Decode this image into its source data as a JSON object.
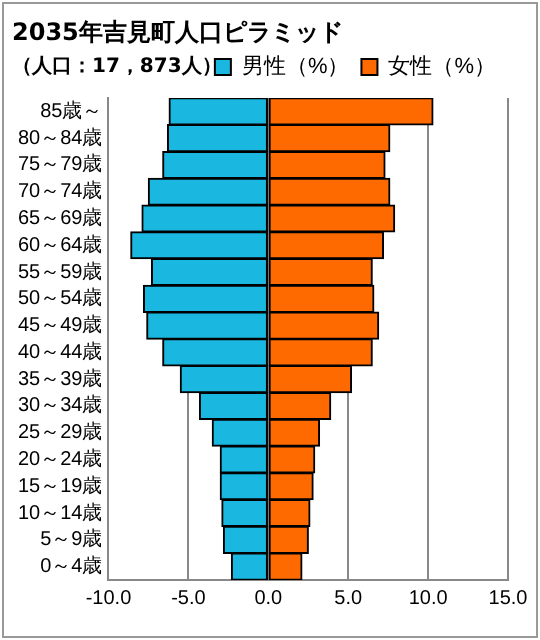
{
  "chart_data": {
    "type": "bar",
    "orientation": "horizontal",
    "stacked": true,
    "title": "2035年吉見町人口ピラミッド",
    "subtitle": "（人口：17，873人）",
    "categories": [
      "85歳～",
      "80～84歳",
      "75～79歳",
      "70～74歳",
      "65～69歳",
      "60～64歳",
      "55～59歳",
      "50～54歳",
      "45～49歳",
      "40～44歳",
      "35～39歳",
      "30～34歳",
      "25～29歳",
      "20～24歳",
      "15～19歳",
      "10～14歳",
      "5～9歳",
      "0～4歳"
    ],
    "series": [
      {
        "name": "男性（%）",
        "color": "#1ab8e0",
        "values": [
          -6.2,
          -6.3,
          -6.6,
          -7.5,
          -7.9,
          -8.6,
          -7.3,
          -7.8,
          -7.6,
          -6.6,
          -5.5,
          -4.3,
          -3.5,
          -3.0,
          -3.0,
          -2.9,
          -2.8,
          -2.3
        ]
      },
      {
        "name": "女性（%）",
        "color": "#ff6a00",
        "values": [
          10.3,
          7.6,
          7.3,
          7.6,
          7.9,
          7.2,
          6.5,
          6.6,
          6.9,
          6.5,
          5.2,
          3.9,
          3.2,
          2.9,
          2.8,
          2.6,
          2.5,
          2.1
        ]
      }
    ],
    "xlim": [
      -10,
      15
    ],
    "xticks": [
      {
        "value": -10,
        "label": "-10.0"
      },
      {
        "value": -5,
        "label": "-5.0"
      },
      {
        "value": 0,
        "label": "0.0"
      },
      {
        "value": 5,
        "label": "5.0"
      },
      {
        "value": 10,
        "label": "10.0"
      },
      {
        "value": 15,
        "label": "15.0"
      }
    ],
    "grid": "x",
    "legend": "top right"
  }
}
